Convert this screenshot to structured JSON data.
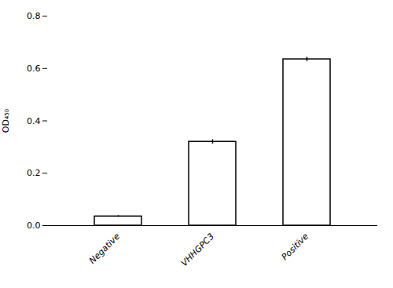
{
  "chart_data": {
    "type": "bar",
    "categories": [
      "Negative",
      "VHHGPC3",
      "Positive"
    ],
    "values": [
      0.035,
      0.32,
      0.635
    ],
    "errors": [
      0.003,
      0.008,
      0.008
    ],
    "colors": [
      "white",
      "white",
      "white"
    ],
    "ylabel": "OD₄₅₀",
    "ylim": [
      0.0,
      0.8
    ],
    "yticks": [
      {
        "value": 0.0,
        "label": "0.0"
      },
      0.2,
      0.4,
      0.6,
      0.8
    ],
    "grid": false
  }
}
